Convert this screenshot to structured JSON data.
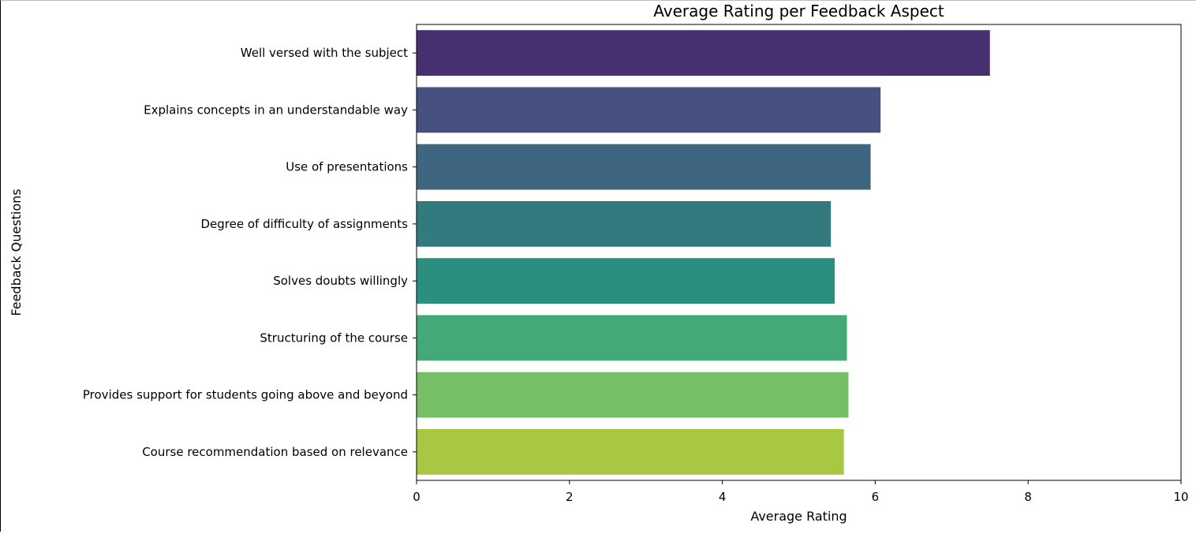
{
  "chart_data": {
    "type": "bar",
    "orientation": "horizontal",
    "title": "Average Rating per Feedback Aspect",
    "xlabel": "Average Rating",
    "ylabel": "Feedback Questions",
    "xlim": [
      0,
      10
    ],
    "xticks": [
      "0",
      "2",
      "4",
      "6",
      "8",
      "10"
    ],
    "grid": false,
    "legend": "none",
    "categories": [
      "Well versed with the subject",
      "Explains concepts in an understandable way",
      "Use of presentations",
      "Degree of difficulty of assignments",
      "Solves doubts willingly",
      "Structuring of the course",
      "Provides support for students going above and beyond",
      "Course recommendation based on relevance"
    ],
    "values": [
      7.5,
      6.07,
      5.94,
      5.42,
      5.47,
      5.63,
      5.65,
      5.59
    ],
    "colors": [
      "#482f6f",
      "#46517f",
      "#3e6680",
      "#337a7f",
      "#2c8e7e",
      "#45a877",
      "#77bf66",
      "#a9c742"
    ]
  }
}
